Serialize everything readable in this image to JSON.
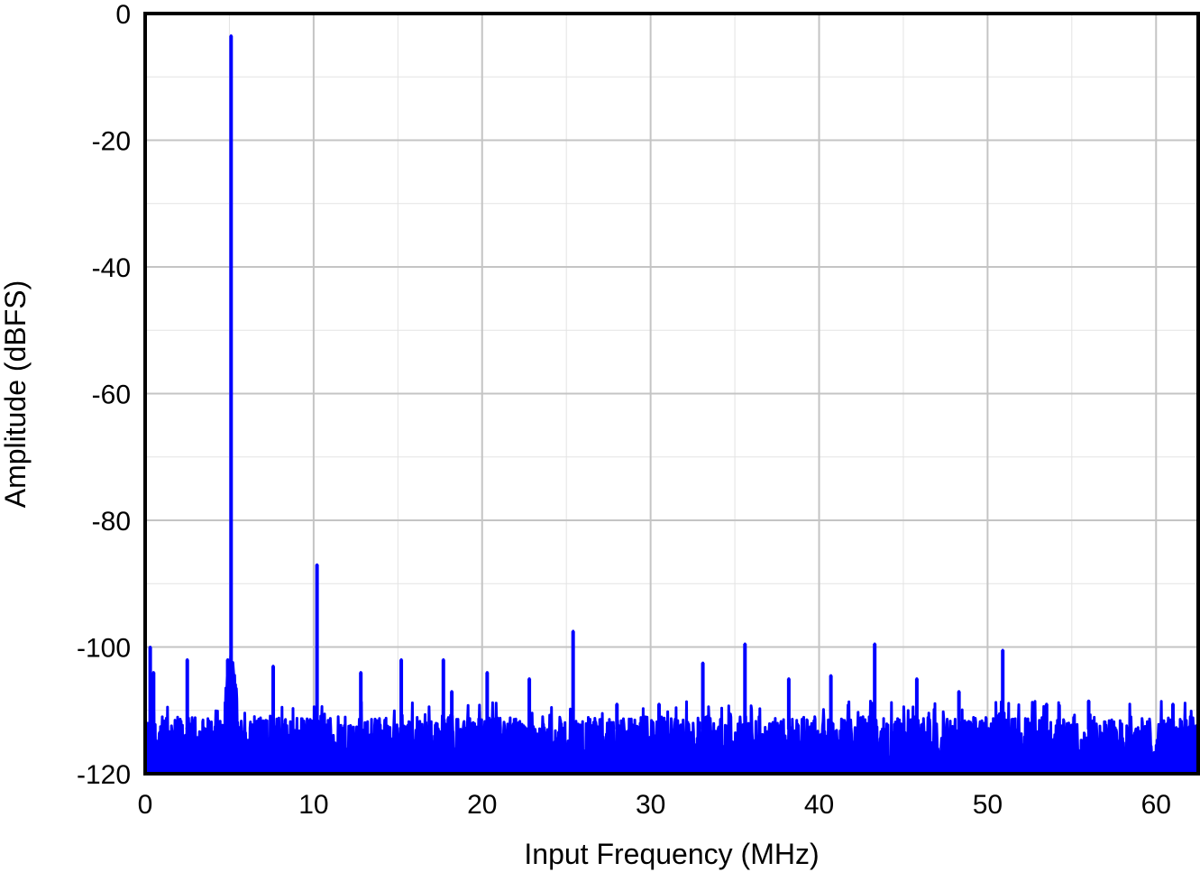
{
  "chart_data": {
    "type": "line",
    "title": "",
    "xlabel": "Input Frequency (MHz)",
    "ylabel": "Amplitude (dBFS)",
    "xlim": [
      0,
      62.5
    ],
    "ylim": [
      -120,
      0
    ],
    "x_ticks": [
      0,
      10,
      20,
      30,
      40,
      50,
      60
    ],
    "x_tick_labels": [
      "0",
      "10",
      "20",
      "30",
      "40",
      "50",
      "60"
    ],
    "y_ticks": [
      0,
      -20,
      -40,
      -60,
      -80,
      -100,
      -120
    ],
    "y_tick_labels": [
      "0",
      "-20",
      "-40",
      "-60",
      "-80",
      "-100",
      "-120"
    ],
    "grid": true,
    "minor_grid": true,
    "noise_floor_range": [
      -120,
      -111
    ],
    "series": [
      {
        "color": "#0000ff",
        "spurs": [
          {
            "x": 0.3,
            "y": -100
          },
          {
            "x": 0.5,
            "y": -104
          },
          {
            "x": 2.5,
            "y": -102
          },
          {
            "x": 4.9,
            "y": -102
          },
          {
            "x": 5.1,
            "y": -3.5
          },
          {
            "x": 7.6,
            "y": -103
          },
          {
            "x": 10.2,
            "y": -87
          },
          {
            "x": 12.8,
            "y": -104
          },
          {
            "x": 15.2,
            "y": -102
          },
          {
            "x": 17.7,
            "y": -102
          },
          {
            "x": 18.2,
            "y": -107
          },
          {
            "x": 20.3,
            "y": -104
          },
          {
            "x": 22.8,
            "y": -105
          },
          {
            "x": 25.4,
            "y": -97.5
          },
          {
            "x": 28.0,
            "y": -109
          },
          {
            "x": 30.5,
            "y": -109
          },
          {
            "x": 33.1,
            "y": -102.5
          },
          {
            "x": 35.6,
            "y": -99.5
          },
          {
            "x": 38.2,
            "y": -105
          },
          {
            "x": 40.7,
            "y": -104.5
          },
          {
            "x": 43.3,
            "y": -99.5
          },
          {
            "x": 45.8,
            "y": -105
          },
          {
            "x": 48.3,
            "y": -107
          },
          {
            "x": 50.9,
            "y": -100.5
          },
          {
            "x": 53.5,
            "y": -109
          },
          {
            "x": 56.0,
            "y": -108.5
          },
          {
            "x": 61.0,
            "y": -109
          }
        ]
      }
    ]
  }
}
